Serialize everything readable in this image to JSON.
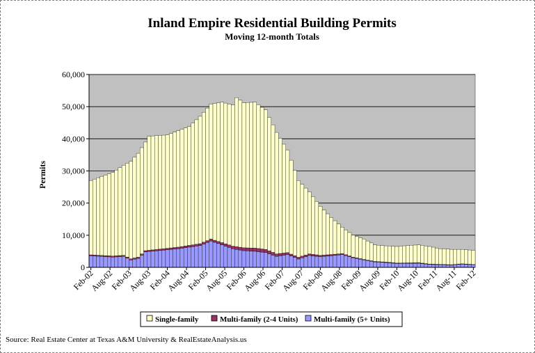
{
  "chart_data": {
    "type": "bar",
    "stacked": true,
    "title": "Inland Empire Residential Building Permits",
    "subtitle": "Moving 12-month Totals",
    "ylabel": "Permits",
    "ylim": [
      0,
      60000
    ],
    "yticks": [
      "0",
      "10,000",
      "20,000",
      "30,000",
      "40,000",
      "50,000",
      "60,000"
    ],
    "grid": true,
    "legend_position": "bottom",
    "x_labels": [
      "Feb-02",
      "Aug-02",
      "Feb-03",
      "Aug-03",
      "Feb-04",
      "Aug-04",
      "Feb-05",
      "Aug-05",
      "Feb-06",
      "Aug-06",
      "Feb-07",
      "Aug-07",
      "Feb-08",
      "Aug-08",
      "Feb-09",
      "Aug-09",
      "Feb-10",
      "Aug-10",
      "Feb-11",
      "Aug-11",
      "Feb-12"
    ],
    "total_anchors": [
      [
        0,
        27000
      ],
      [
        3,
        28300
      ],
      [
        6,
        29500
      ],
      [
        9,
        31800
      ],
      [
        11,
        33000
      ],
      [
        13,
        35500
      ],
      [
        15,
        39000
      ],
      [
        16,
        40800
      ],
      [
        18,
        41000
      ],
      [
        21,
        41200
      ],
      [
        24,
        42500
      ],
      [
        27,
        43800
      ],
      [
        30,
        47000
      ],
      [
        33,
        50800
      ],
      [
        36,
        51400
      ],
      [
        39,
        50500
      ],
      [
        40,
        52800
      ],
      [
        42,
        51200
      ],
      [
        45,
        51400
      ],
      [
        48,
        49000
      ],
      [
        51,
        42000
      ],
      [
        54,
        36500
      ],
      [
        57,
        27000
      ],
      [
        60,
        23500
      ],
      [
        63,
        19000
      ],
      [
        66,
        15500
      ],
      [
        69,
        12500
      ],
      [
        72,
        10000
      ],
      [
        75,
        8800
      ],
      [
        78,
        7000
      ],
      [
        81,
        6700
      ],
      [
        84,
        6500
      ],
      [
        87,
        6800
      ],
      [
        90,
        7000
      ],
      [
        93,
        6500
      ],
      [
        96,
        5800
      ],
      [
        99,
        5600
      ],
      [
        102,
        5600
      ],
      [
        105,
        5300
      ]
    ],
    "multi5_anchors": [
      [
        0,
        3600
      ],
      [
        6,
        3200
      ],
      [
        9,
        3400
      ],
      [
        11,
        2300
      ],
      [
        13,
        2800
      ],
      [
        15,
        4800
      ],
      [
        24,
        5800
      ],
      [
        27,
        6300
      ],
      [
        30,
        6800
      ],
      [
        33,
        8200
      ],
      [
        36,
        7000
      ],
      [
        39,
        5800
      ],
      [
        42,
        5200
      ],
      [
        45,
        5000
      ],
      [
        48,
        4600
      ],
      [
        51,
        3400
      ],
      [
        54,
        4000
      ],
      [
        57,
        2600
      ],
      [
        60,
        3700
      ],
      [
        63,
        3300
      ],
      [
        66,
        3600
      ],
      [
        69,
        4000
      ],
      [
        72,
        3000
      ],
      [
        75,
        2300
      ],
      [
        78,
        1700
      ],
      [
        81,
        1500
      ],
      [
        84,
        1200
      ],
      [
        90,
        1300
      ],
      [
        93,
        900
      ],
      [
        96,
        800
      ],
      [
        99,
        700
      ],
      [
        102,
        1000
      ],
      [
        105,
        800
      ]
    ],
    "multi24_anchors": [
      [
        0,
        300
      ],
      [
        15,
        400
      ],
      [
        24,
        500
      ],
      [
        33,
        600
      ],
      [
        39,
        800
      ],
      [
        45,
        1000
      ],
      [
        48,
        1000
      ],
      [
        51,
        800
      ],
      [
        54,
        600
      ],
      [
        60,
        500
      ],
      [
        66,
        400
      ],
      [
        72,
        200
      ],
      [
        78,
        150
      ],
      [
        90,
        150
      ],
      [
        105,
        100
      ]
    ],
    "series": [
      {
        "name": "Single-family",
        "color": "#ffffcc"
      },
      {
        "name": "Multi-family (2-4 Units)",
        "color": "#993366"
      },
      {
        "name": "Multi-family (5+ Units)",
        "color": "#9999ff"
      }
    ],
    "source": "Source: Real Estate Center at Texas A&M University & RealEstateAnalysis.us"
  }
}
